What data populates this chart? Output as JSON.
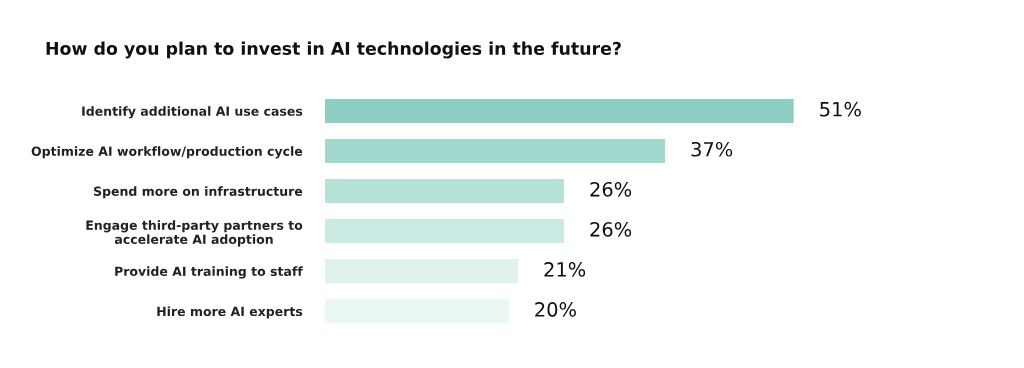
{
  "chart_data": {
    "type": "bar",
    "orientation": "horizontal",
    "title": "How do you plan to invest in AI technologies in the future?",
    "categories": [
      "Identify additional AI use cases",
      "Optimize AI workflow/production cycle",
      "Spend more on infrastructure",
      "Engage third-party partners to\naccelerate AI adoption",
      "Provide AI training to staff",
      "Hire more AI experts"
    ],
    "values": [
      51,
      37,
      26,
      26,
      21,
      20
    ],
    "value_labels": [
      "51%",
      "37%",
      "26%",
      "26%",
      "21%",
      "20%"
    ],
    "colors": [
      "#8dd0c3",
      "#a2d9ce",
      "#b6e1d8",
      "#cbeae4",
      "#e0f2ee",
      "#ebf7f4"
    ],
    "grid": false,
    "legend": false
  }
}
